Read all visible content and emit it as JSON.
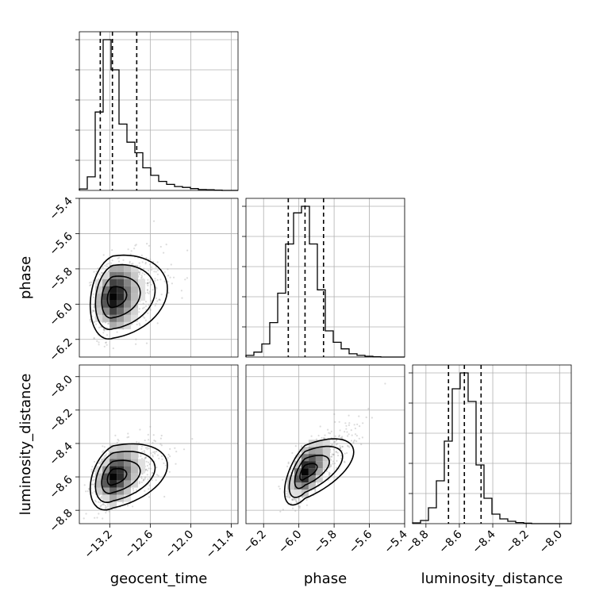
{
  "chart_data": {
    "type": "corner",
    "grid": true,
    "parameters": [
      {
        "name": "geocent_time",
        "label": "geocent_time",
        "range": [
          -13.65,
          -11.3
        ],
        "ticks": [
          -13.2,
          -12.6,
          -12.0,
          -11.4
        ],
        "tick_labels": [
          "−13.2",
          "−12.6",
          "−12.0",
          "−11.4"
        ],
        "quantiles": [
          -13.34,
          -13.16,
          -12.8
        ],
        "hist": {
          "edges_start": -13.65,
          "bin_width": 0.1175,
          "counts": [
            0.05,
            0.45,
            2.6,
            5.0,
            4.0,
            2.2,
            1.6,
            1.25,
            0.75,
            0.5,
            0.3,
            0.2,
            0.13,
            0.1,
            0.06,
            0.03,
            0.02,
            0.01,
            0.0,
            0.0
          ]
        }
      },
      {
        "name": "phase",
        "label": "phase",
        "range": [
          -6.3,
          -5.4
        ],
        "ticks": [
          -6.2,
          -6.0,
          -5.8,
          -5.6,
          -5.4
        ],
        "tick_labels": [
          "−6.2",
          "−6.0",
          "−5.8",
          "−5.6",
          "−5.4"
        ],
        "quantiles": [
          -6.06,
          -5.965,
          -5.86
        ],
        "hist": {
          "edges_start": -6.3,
          "bin_width": 0.045,
          "counts": [
            0.1,
            0.3,
            0.8,
            2.1,
            3.9,
            6.9,
            8.8,
            9.2,
            6.9,
            4.1,
            1.6,
            0.9,
            0.5,
            0.2,
            0.1,
            0.05,
            0.02,
            0.0,
            0.0,
            0.0
          ]
        }
      },
      {
        "name": "luminosity_distance",
        "label": "luminosity_distance",
        "range": [
          -8.88,
          -7.93
        ],
        "ticks": [
          -8.8,
          -8.6,
          -8.4,
          -8.2,
          -8.0
        ],
        "tick_labels": [
          "−8.8",
          "−8.6",
          "−8.4",
          "−8.2",
          "−8.0"
        ],
        "quantiles": [
          -8.665,
          -8.57,
          -8.47
        ],
        "hist": {
          "edges_start": -8.88,
          "bin_width": 0.0475,
          "counts": [
            0.05,
            0.2,
            1.0,
            2.7,
            5.2,
            8.5,
            9.5,
            7.7,
            3.7,
            1.6,
            0.6,
            0.3,
            0.15,
            0.07,
            0.03,
            0.0,
            0.0,
            0.0,
            0.0,
            0.0
          ]
        }
      }
    ],
    "pair_panels": [
      {
        "x": "geocent_time",
        "y": "phase",
        "peak": [
          -13.15,
          -5.96
        ],
        "spread": [
          0.35,
          0.12
        ],
        "correlation": 0.2
      },
      {
        "x": "geocent_time",
        "y": "luminosity_distance",
        "peak": [
          -13.15,
          -8.6
        ],
        "spread": [
          0.35,
          0.1
        ],
        "correlation": 0.35
      },
      {
        "x": "phase",
        "y": "luminosity_distance",
        "peak": [
          -5.965,
          -8.57
        ],
        "spread": [
          0.12,
          0.1
        ],
        "correlation": 0.6
      }
    ]
  }
}
